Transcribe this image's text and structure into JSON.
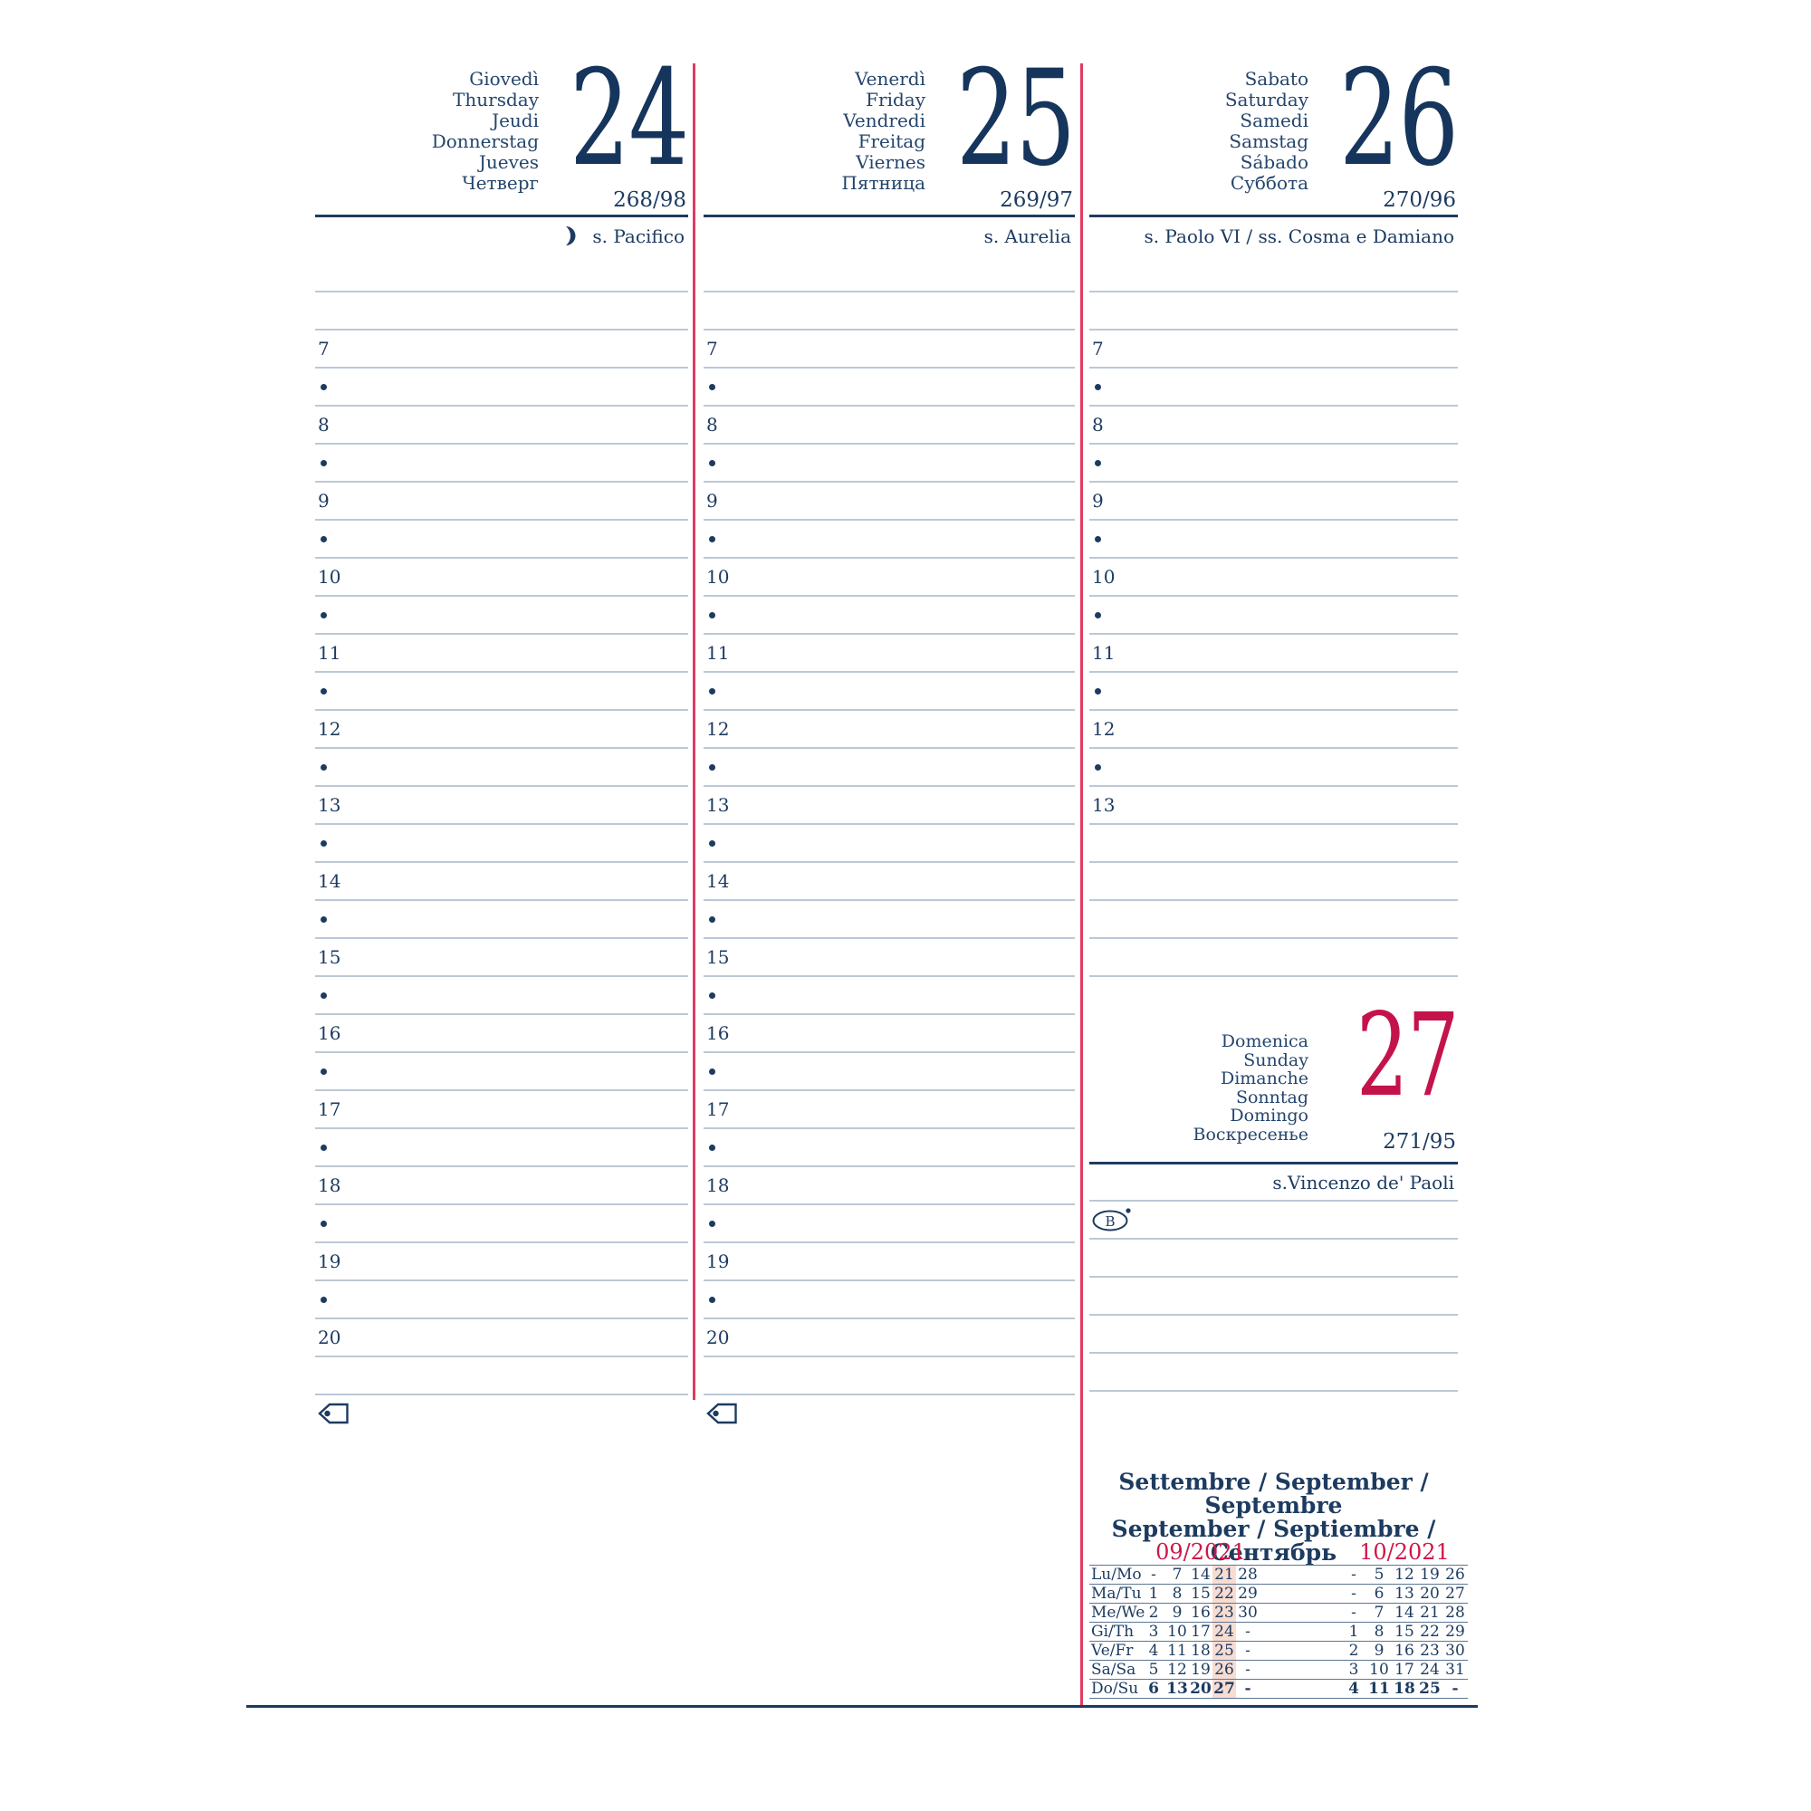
{
  "colors": {
    "navy": "#1d3b60",
    "big_number_navy": "#16355c",
    "sunday_red": "#c4134b",
    "month_label_red": "#cf1748",
    "red_divider": "#e23a60",
    "note_line": "#bcc8d5",
    "calendar_rule": "#5c7692",
    "week_highlight": "#f8dcd2"
  },
  "icons": {
    "moon": "waning-moon-icon",
    "tag": "tag-label-icon",
    "b_badge": "letter-b-ellipse-icon"
  },
  "days": [
    {
      "names": [
        "Giovedì",
        "Thursday",
        "Jeudi",
        "Donnerstag",
        "Jueves",
        "Четверг"
      ],
      "number": "24",
      "day_of_year": "268/98",
      "saint": "s. Pacifico",
      "has_moon": true,
      "grid_rows": [
        "",
        "",
        "7",
        "•",
        "8",
        "•",
        "9",
        "•",
        "10",
        "•",
        "11",
        "•",
        "12",
        "•",
        "13",
        "•",
        "14",
        "•",
        "15",
        "•",
        "16",
        "•",
        "17",
        "•",
        "18",
        "•",
        "19",
        "•",
        "20",
        ""
      ],
      "has_tag_icon": true
    },
    {
      "names": [
        "Venerdì",
        "Friday",
        "Vendredi",
        "Freitag",
        "Viernes",
        "Пятница"
      ],
      "number": "25",
      "day_of_year": "269/97",
      "saint": "s. Aurelia",
      "has_moon": false,
      "grid_rows": [
        "",
        "",
        "7",
        "•",
        "8",
        "•",
        "9",
        "•",
        "10",
        "•",
        "11",
        "•",
        "12",
        "•",
        "13",
        "•",
        "14",
        "•",
        "15",
        "•",
        "16",
        "•",
        "17",
        "•",
        "18",
        "•",
        "19",
        "•",
        "20",
        ""
      ],
      "has_tag_icon": true
    },
    {
      "names": [
        "Sabato",
        "Saturday",
        "Samedi",
        "Samstag",
        "Sábado",
        "Суббота"
      ],
      "number": "26",
      "day_of_year": "270/96",
      "saint": "s. Paolo VI / ss. Cosma e Damiano",
      "has_moon": false,
      "grid_rows": [
        "",
        "",
        "7",
        "•",
        "8",
        "•",
        "9",
        "•",
        "10",
        "•",
        "11",
        "•",
        "12",
        "•",
        "13",
        "",
        "",
        "",
        ""
      ],
      "has_tag_icon": false
    }
  ],
  "sunday": {
    "names": [
      "Domenica",
      "Sunday",
      "Dimanche",
      "Sonntag",
      "Domingo",
      "Воскресенье"
    ],
    "number": "27",
    "day_of_year": "271/95",
    "saint": "s.Vincenzo de' Paoli",
    "b_label": "B",
    "note_rows": [
      "b-icon",
      "",
      "",
      "",
      ""
    ]
  },
  "month_title": {
    "line1": "Settembre / September / Septembre",
    "line2": "September / Septiembre / Сентябрь"
  },
  "mini_calendar": {
    "months": [
      {
        "label": "09/2021"
      },
      {
        "label": "10/2021"
      }
    ],
    "row_labels": [
      "Lu/Mo",
      "Ma/Tu",
      "Me/We",
      "Gi/Th",
      "Ve/Fr",
      "Sa/Sa",
      "Do/Su"
    ],
    "september": [
      [
        "-",
        "7",
        "14",
        "21",
        "28"
      ],
      [
        "1",
        "8",
        "15",
        "22",
        "29"
      ],
      [
        "2",
        "9",
        "16",
        "23",
        "30"
      ],
      [
        "3",
        "10",
        "17",
        "24",
        "-"
      ],
      [
        "4",
        "11",
        "18",
        "25",
        "-"
      ],
      [
        "5",
        "12",
        "19",
        "26",
        "-"
      ],
      [
        "6",
        "13",
        "20",
        "27",
        "-"
      ]
    ],
    "october": [
      [
        "-",
        "5",
        "12",
        "19",
        "26"
      ],
      [
        "-",
        "6",
        "13",
        "20",
        "27"
      ],
      [
        "-",
        "7",
        "14",
        "21",
        "28"
      ],
      [
        "1",
        "8",
        "15",
        "22",
        "29"
      ],
      [
        "2",
        "9",
        "16",
        "23",
        "30"
      ],
      [
        "3",
        "10",
        "17",
        "24",
        "31"
      ],
      [
        "4",
        "11",
        "18",
        "25",
        "-"
      ]
    ],
    "september_highlight_column_index": 3,
    "bold_row_index": 6
  }
}
